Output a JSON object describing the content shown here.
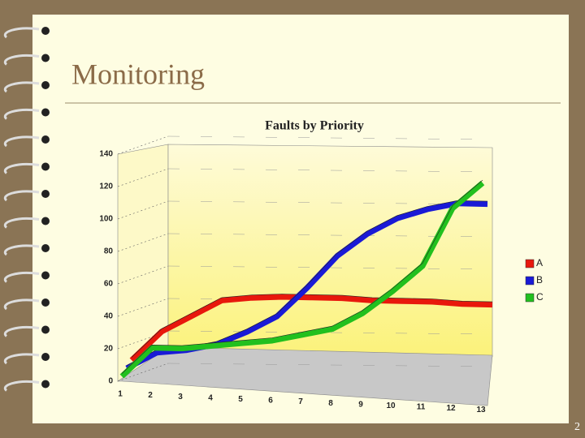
{
  "slide_title": "Monitoring",
  "page_number": "2",
  "chart_data": {
    "type": "line",
    "title": "Faults by Priority",
    "categories": [
      "1",
      "2",
      "3",
      "4",
      "5",
      "6",
      "7",
      "8",
      "9",
      "10",
      "11",
      "12",
      "13"
    ],
    "series": [
      {
        "name": "A",
        "color": "#e8180c",
        "values": [
          0,
          18,
          28,
          38,
          40,
          41,
          41,
          41,
          40,
          40,
          40,
          39,
          39
        ]
      },
      {
        "name": "B",
        "color": "#1a1ad6",
        "values": [
          0,
          10,
          12,
          16,
          24,
          34,
          52,
          72,
          86,
          96,
          102,
          106,
          106
        ]
      },
      {
        "name": "C",
        "color": "#22c01e",
        "values": [
          0,
          18,
          18,
          20,
          22,
          24,
          28,
          32,
          42,
          56,
          72,
          108,
          124
        ]
      }
    ],
    "ylim": [
      0,
      140
    ],
    "yticks": [
      0,
      20,
      40,
      60,
      80,
      100,
      120,
      140
    ],
    "grid": true,
    "legend": "right"
  }
}
